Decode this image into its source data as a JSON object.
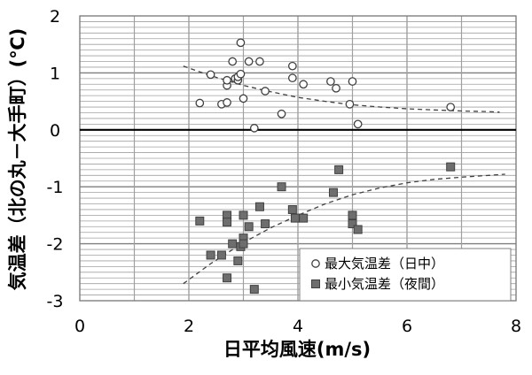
{
  "chart_data": {
    "type": "scatter",
    "title": "",
    "xlabel": "日平均風速(m/s)",
    "ylabel": "気温差（北の丸－大手町）(℃)",
    "xlim": [
      0,
      8
    ],
    "ylim": [
      -3,
      2
    ],
    "x_ticks": [
      "0",
      "2",
      "4",
      "6",
      "8"
    ],
    "y_ticks": [
      "-3",
      "-2",
      "-1",
      "0",
      "1",
      "2"
    ],
    "grid": true,
    "legend_position": "bottom-right",
    "series": [
      {
        "name": "最大気温差（日中）",
        "marker": "circle-open",
        "points": [
          [
            2.2,
            0.47
          ],
          [
            2.4,
            0.97
          ],
          [
            2.6,
            0.45
          ],
          [
            2.7,
            0.78
          ],
          [
            2.7,
            0.87
          ],
          [
            2.7,
            0.48
          ],
          [
            2.8,
            1.2
          ],
          [
            2.85,
            0.9
          ],
          [
            2.9,
            0.87
          ],
          [
            2.9,
            0.93
          ],
          [
            2.95,
            0.98
          ],
          [
            2.95,
            1.53
          ],
          [
            3.0,
            0.55
          ],
          [
            3.1,
            1.2
          ],
          [
            3.2,
            0.03
          ],
          [
            3.3,
            1.2
          ],
          [
            3.4,
            0.68
          ],
          [
            3.7,
            0.28
          ],
          [
            3.9,
            1.12
          ],
          [
            3.9,
            0.91
          ],
          [
            4.1,
            0.8
          ],
          [
            4.6,
            0.85
          ],
          [
            4.7,
            0.73
          ],
          [
            4.95,
            0.45
          ],
          [
            5.0,
            0.85
          ],
          [
            5.1,
            0.1
          ],
          [
            6.8,
            0.4
          ]
        ],
        "trend": [
          [
            1.9,
            1.12
          ],
          [
            2.4,
            0.95
          ],
          [
            3.0,
            0.78
          ],
          [
            3.5,
            0.67
          ],
          [
            4.0,
            0.57
          ],
          [
            4.5,
            0.5
          ],
          [
            5.0,
            0.44
          ],
          [
            5.5,
            0.4
          ],
          [
            6.0,
            0.37
          ],
          [
            6.5,
            0.35
          ],
          [
            7.0,
            0.33
          ],
          [
            7.5,
            0.32
          ],
          [
            7.7,
            0.31
          ]
        ]
      },
      {
        "name": "最小気温差（夜間）",
        "marker": "square-filled",
        "points": [
          [
            2.2,
            -1.6
          ],
          [
            2.4,
            -2.2
          ],
          [
            2.6,
            -2.2
          ],
          [
            2.7,
            -1.5
          ],
          [
            2.7,
            -1.62
          ],
          [
            2.7,
            -2.6
          ],
          [
            2.8,
            -2.0
          ],
          [
            2.9,
            -2.3
          ],
          [
            2.95,
            -2.05
          ],
          [
            3.0,
            -1.5
          ],
          [
            3.0,
            -1.9
          ],
          [
            3.0,
            -2.0
          ],
          [
            3.1,
            -1.7
          ],
          [
            3.2,
            -2.8
          ],
          [
            3.3,
            -1.35
          ],
          [
            3.4,
            -1.65
          ],
          [
            3.7,
            -1.0
          ],
          [
            3.9,
            -1.4
          ],
          [
            3.95,
            -1.55
          ],
          [
            4.1,
            -1.55
          ],
          [
            4.65,
            -1.1
          ],
          [
            4.75,
            -0.7
          ],
          [
            5.0,
            -1.5
          ],
          [
            5.0,
            -1.65
          ],
          [
            5.1,
            -1.75
          ],
          [
            6.8,
            -0.65
          ]
        ],
        "trend": [
          [
            1.9,
            -2.7
          ],
          [
            2.4,
            -2.35
          ],
          [
            3.0,
            -1.98
          ],
          [
            3.5,
            -1.72
          ],
          [
            4.0,
            -1.5
          ],
          [
            4.5,
            -1.3
          ],
          [
            5.0,
            -1.14
          ],
          [
            5.5,
            -1.02
          ],
          [
            6.0,
            -0.93
          ],
          [
            6.5,
            -0.87
          ],
          [
            7.0,
            -0.83
          ],
          [
            7.5,
            -0.8
          ],
          [
            7.8,
            -0.78
          ]
        ]
      }
    ]
  },
  "colors": {
    "grid": "#a0a0a0",
    "frame": "#7f7f7f",
    "zero_line": "#000000",
    "open_marker_stroke": "#404040",
    "filled_marker": "#6e6e6e",
    "trend": "#404040"
  }
}
